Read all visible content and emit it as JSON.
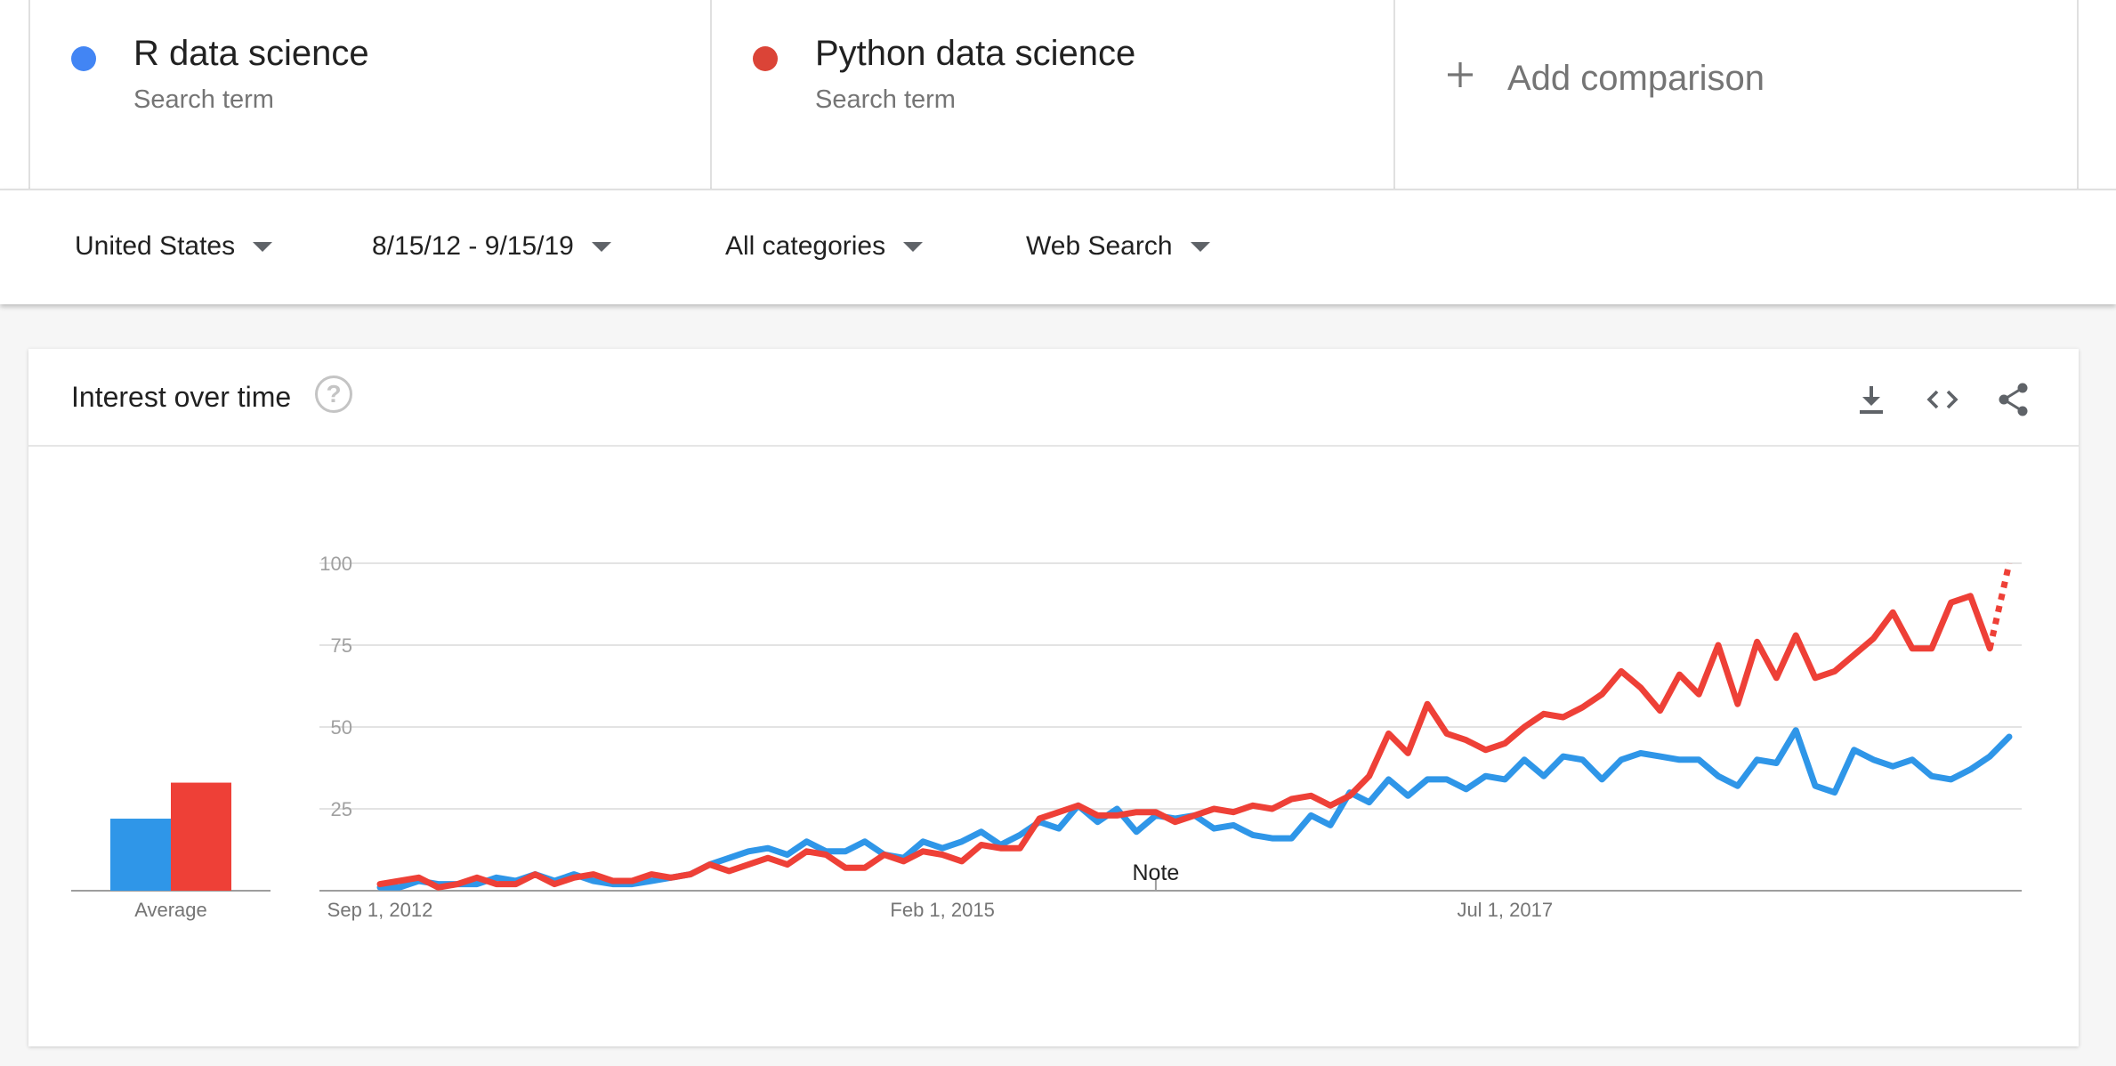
{
  "compare": {
    "terms": [
      {
        "name": "R data science",
        "subtitle": "Search term",
        "color": "#4285f4"
      },
      {
        "name": "Python data science",
        "subtitle": "Search term",
        "color": "#db4437"
      }
    ],
    "add_label": "Add comparison"
  },
  "filters": {
    "region": "United States",
    "date_range": "8/15/12 - 9/15/19",
    "category": "All categories",
    "search_type": "Web Search"
  },
  "widget": {
    "title": "Interest over time",
    "average_label": "Average",
    "note_label": "Note",
    "icons": [
      "help-icon",
      "download-icon",
      "embed-icon",
      "share-icon"
    ]
  },
  "chart_data": {
    "type": "line",
    "title": "Interest over time",
    "ylim": [
      0,
      100
    ],
    "yticks": [
      25,
      50,
      75,
      100
    ],
    "x_tick_labels": [
      "Sep 1, 2012",
      "Feb 1, 2015",
      "Jul 1, 2017"
    ],
    "x_tick_months": [
      "2012-09",
      "2015-02",
      "2017-07"
    ],
    "x_range_months": [
      "2012-09",
      "2019-09"
    ],
    "grid": true,
    "note_month": "2016-01",
    "averages": [
      {
        "series": "R data science",
        "value": 22
      },
      {
        "series": "Python data science",
        "value": 33
      }
    ],
    "series": [
      {
        "name": "R data science",
        "color": "#2f96e8",
        "months": [
          "2012-09",
          "2012-10",
          "2012-11",
          "2012-12",
          "2013-01",
          "2013-02",
          "2013-03",
          "2013-04",
          "2013-05",
          "2013-06",
          "2013-07",
          "2013-08",
          "2013-09",
          "2013-10",
          "2013-11",
          "2013-12",
          "2014-01",
          "2014-02",
          "2014-03",
          "2014-04",
          "2014-05",
          "2014-06",
          "2014-07",
          "2014-08",
          "2014-09",
          "2014-10",
          "2014-11",
          "2014-12",
          "2015-01",
          "2015-02",
          "2015-03",
          "2015-04",
          "2015-05",
          "2015-06",
          "2015-07",
          "2015-08",
          "2015-09",
          "2015-10",
          "2015-11",
          "2015-12",
          "2016-01",
          "2016-02",
          "2016-03",
          "2016-04",
          "2016-05",
          "2016-06",
          "2016-07",
          "2016-08",
          "2016-09",
          "2016-10",
          "2016-11",
          "2016-12",
          "2017-01",
          "2017-02",
          "2017-03",
          "2017-04",
          "2017-05",
          "2017-06",
          "2017-07",
          "2017-08",
          "2017-09",
          "2017-10",
          "2017-11",
          "2017-12",
          "2018-01",
          "2018-02",
          "2018-03",
          "2018-04",
          "2018-05",
          "2018-06",
          "2018-07",
          "2018-08",
          "2018-09",
          "2018-10",
          "2018-11",
          "2018-12",
          "2019-01",
          "2019-02",
          "2019-03",
          "2019-04",
          "2019-05",
          "2019-06",
          "2019-07",
          "2019-08",
          "2019-09"
        ],
        "values": [
          1,
          1,
          3,
          2,
          2,
          2,
          4,
          3,
          5,
          3,
          5,
          3,
          2,
          2,
          3,
          4,
          5,
          8,
          10,
          12,
          13,
          11,
          15,
          12,
          12,
          15,
          11,
          10,
          15,
          13,
          15,
          18,
          14,
          17,
          21,
          19,
          26,
          21,
          25,
          18,
          23,
          22,
          23,
          19,
          20,
          17,
          16,
          16,
          23,
          20,
          30,
          27,
          34,
          29,
          34,
          34,
          31,
          35,
          34,
          40,
          35,
          41,
          40,
          34,
          40,
          42,
          41,
          40,
          40,
          35,
          32,
          40,
          39,
          49,
          32,
          30,
          43,
          40,
          38,
          40,
          35,
          34,
          37,
          41,
          47
        ]
      },
      {
        "name": "Python data science",
        "color": "#ee4037",
        "months": [
          "2012-09",
          "2012-10",
          "2012-11",
          "2012-12",
          "2013-01",
          "2013-02",
          "2013-03",
          "2013-04",
          "2013-05",
          "2013-06",
          "2013-07",
          "2013-08",
          "2013-09",
          "2013-10",
          "2013-11",
          "2013-12",
          "2014-01",
          "2014-02",
          "2014-03",
          "2014-04",
          "2014-05",
          "2014-06",
          "2014-07",
          "2014-08",
          "2014-09",
          "2014-10",
          "2014-11",
          "2014-12",
          "2015-01",
          "2015-02",
          "2015-03",
          "2015-04",
          "2015-05",
          "2015-06",
          "2015-07",
          "2015-08",
          "2015-09",
          "2015-10",
          "2015-11",
          "2015-12",
          "2016-01",
          "2016-02",
          "2016-03",
          "2016-04",
          "2016-05",
          "2016-06",
          "2016-07",
          "2016-08",
          "2016-09",
          "2016-10",
          "2016-11",
          "2016-12",
          "2017-01",
          "2017-02",
          "2017-03",
          "2017-04",
          "2017-05",
          "2017-06",
          "2017-07",
          "2017-08",
          "2017-09",
          "2017-10",
          "2017-11",
          "2017-12",
          "2018-01",
          "2018-02",
          "2018-03",
          "2018-04",
          "2018-05",
          "2018-06",
          "2018-07",
          "2018-08",
          "2018-09",
          "2018-10",
          "2018-11",
          "2018-12",
          "2019-01",
          "2019-02",
          "2019-03",
          "2019-04",
          "2019-05",
          "2019-06",
          "2019-07",
          "2019-08",
          "2019-09"
        ],
        "values": [
          2,
          3,
          4,
          1,
          2,
          4,
          2,
          2,
          5,
          2,
          4,
          5,
          3,
          3,
          5,
          4,
          5,
          8,
          6,
          8,
          10,
          8,
          12,
          11,
          7,
          7,
          11,
          9,
          12,
          11,
          9,
          14,
          13,
          13,
          22,
          24,
          26,
          23,
          23,
          24,
          24,
          21,
          23,
          25,
          24,
          26,
          25,
          28,
          29,
          26,
          29,
          35,
          48,
          42,
          57,
          48,
          46,
          43,
          45,
          50,
          54,
          53,
          56,
          60,
          67,
          62,
          55,
          66,
          60,
          75,
          57,
          76,
          65,
          78,
          65,
          67,
          72,
          77,
          85,
          74,
          74,
          88,
          90,
          74,
          100
        ],
        "partial_last": true
      }
    ]
  }
}
